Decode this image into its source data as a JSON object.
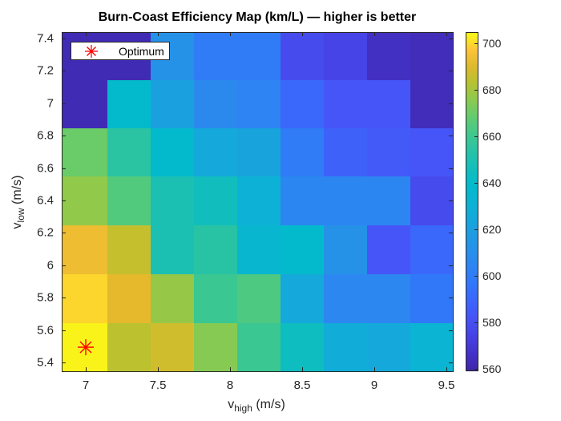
{
  "chart_data": {
    "type": "heatmap",
    "title": "Burn-Coast Efficiency Map (km/L) — higher is better",
    "xlabel": "v_high (m/s)",
    "ylabel": "v_low (m/s)",
    "x": [
      7.0,
      7.3,
      7.6,
      7.9,
      8.2,
      8.5,
      8.8,
      9.1,
      9.4
    ],
    "y": [
      7.3,
      7.0,
      6.7,
      6.4,
      6.1,
      5.8,
      5.5
    ],
    "z": [
      [
        562,
        562,
        612,
        600,
        600,
        578,
        575,
        565,
        563
      ],
      [
        562,
        640,
        620,
        607,
        604,
        590,
        582,
        582,
        563
      ],
      [
        670,
        655,
        640,
        625,
        622,
        600,
        587,
        584,
        582
      ],
      [
        677,
        665,
        650,
        646,
        630,
        605,
        605,
        605,
        578
      ],
      [
        694,
        686,
        650,
        654,
        635,
        640,
        612,
        582,
        590
      ],
      [
        700,
        692,
        678,
        660,
        664,
        625,
        606,
        606,
        598
      ],
      [
        704,
        684,
        688,
        675,
        660,
        645,
        627,
        625,
        633
      ]
    ],
    "xlim": [
      6.85,
      9.55
    ],
    "ylim": [
      5.35,
      7.45
    ],
    "xticks": [
      "7",
      "7.5",
      "8",
      "8.5",
      "9",
      "9.5"
    ],
    "yticks": [
      "5.4",
      "5.6",
      "5.8",
      "6",
      "6.2",
      "6.4",
      "6.6",
      "6.8",
      "7",
      "7.2",
      "7.4"
    ],
    "colormap": "parula",
    "clim": [
      559,
      705
    ],
    "colorbar_ticks": [
      "560",
      "580",
      "600",
      "620",
      "640",
      "660",
      "680",
      "700"
    ],
    "annotations": [
      {
        "label": "Optimum",
        "marker": "red asterisk",
        "x": 7.0,
        "y": 5.5
      }
    ],
    "legend": {
      "entries": [
        "Optimum"
      ],
      "position": "northwest"
    },
    "grid": false
  },
  "labels": {
    "title": "Burn-Coast Efficiency Map (km/L) — higher is better",
    "xlabel_main": "v",
    "xlabel_sub": "high",
    "xlabel_unit": " (m/s)",
    "ylabel_main": "v",
    "ylabel_sub": "low",
    "ylabel_unit": " (m/s)",
    "legend_optimum": "Optimum"
  }
}
